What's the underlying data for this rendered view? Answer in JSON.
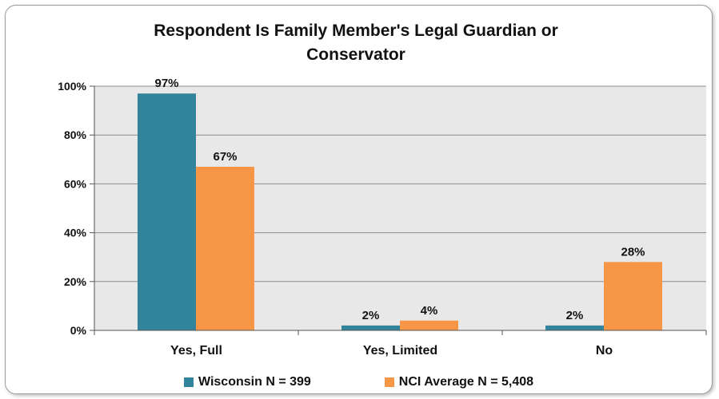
{
  "chart_data": {
    "type": "bar",
    "title": "Respondent Is Family Member's Legal Guardian or\nConservator",
    "categories": [
      "Yes, Full",
      "Yes, Limited",
      "No"
    ],
    "series": [
      {
        "name": "Wisconsin N = 399",
        "values": [
          97,
          2,
          2
        ],
        "labels": [
          "97%",
          "2%",
          "2%"
        ],
        "color": "#31849b"
      },
      {
        "name": "NCI Average N = 5,408",
        "values": [
          67,
          4,
          28
        ],
        "labels": [
          "67%",
          "4%",
          "28%"
        ],
        "color": "#f79646"
      }
    ],
    "ylim": [
      0,
      100
    ],
    "yticks": [
      0,
      20,
      40,
      60,
      80,
      100
    ],
    "ytick_labels": [
      "0%",
      "20%",
      "40%",
      "60%",
      "80%",
      "100%"
    ],
    "grid": true,
    "legend_position": "bottom",
    "plot_background": "#e8e8e8"
  }
}
